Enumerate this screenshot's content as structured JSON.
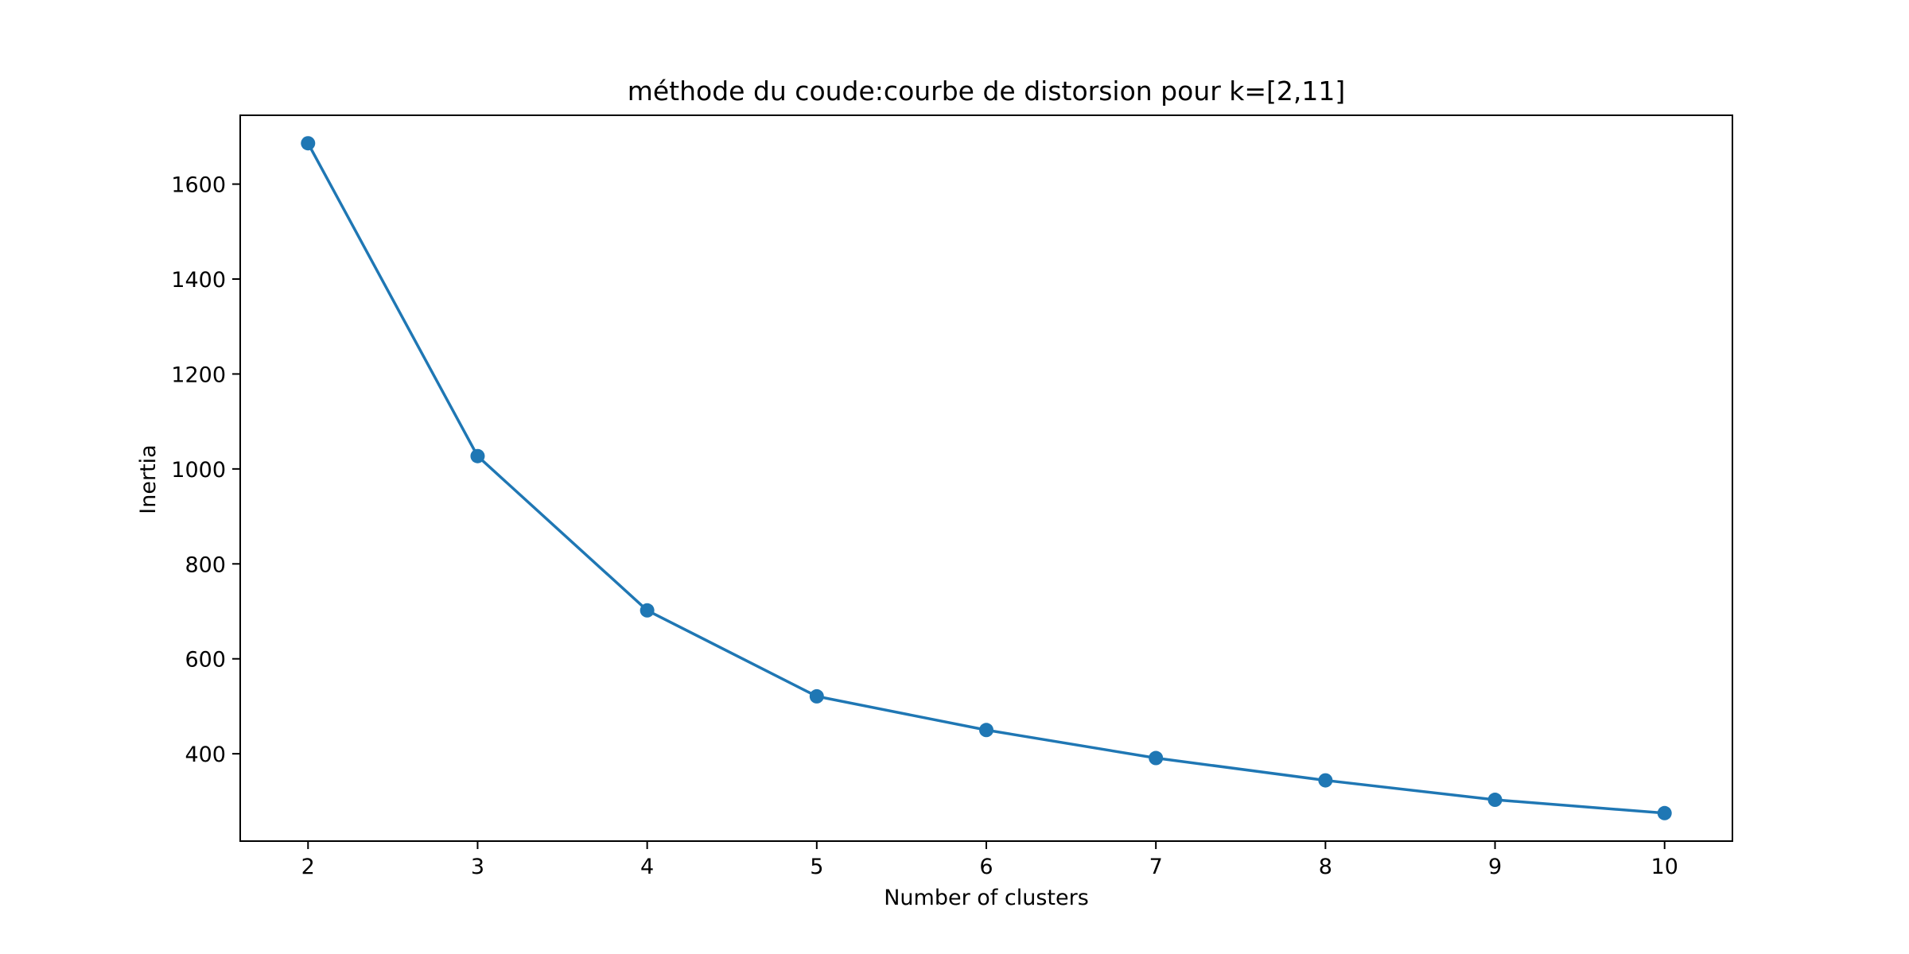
{
  "chart_data": {
    "type": "line",
    "title": "méthode du coude:courbe de distorsion pour k=[2,11]",
    "xlabel": "Number of clusters",
    "ylabel": "Inertia",
    "x": [
      2,
      3,
      4,
      5,
      6,
      7,
      8,
      9,
      10
    ],
    "series": [
      {
        "values": [
          1686,
          1027,
          702,
          521,
          450,
          391,
          344,
          303,
          275
        ],
        "marker": "circle",
        "color": "#1f77b4"
      }
    ],
    "xticks": [
      2,
      3,
      4,
      5,
      6,
      7,
      8,
      9,
      10
    ],
    "yticks": [
      400,
      600,
      800,
      1000,
      1200,
      1400,
      1600
    ],
    "xlim": [
      1.6,
      10.4
    ],
    "ylim": [
      216,
      1745
    ],
    "grid": false,
    "legend": "none"
  }
}
